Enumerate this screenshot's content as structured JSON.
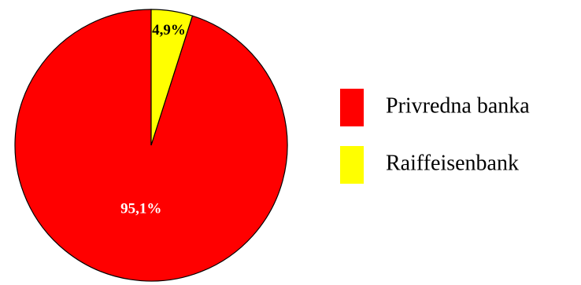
{
  "chart_data": {
    "type": "pie",
    "categories": [
      "Privredna banka",
      "Raiffeisenbank"
    ],
    "values": [
      95.1,
      4.9
    ],
    "value_labels": [
      "95,1%",
      "4,9%"
    ],
    "colors": [
      "#ff0000",
      "#ffff00"
    ],
    "label_colors": [
      "#ffffff",
      "#000000"
    ],
    "start": "12 o'clock",
    "direction": "counterclockwise",
    "legend": {
      "position": "right",
      "entries": [
        "Privredna banka",
        "Raiffeisenbank"
      ]
    }
  }
}
